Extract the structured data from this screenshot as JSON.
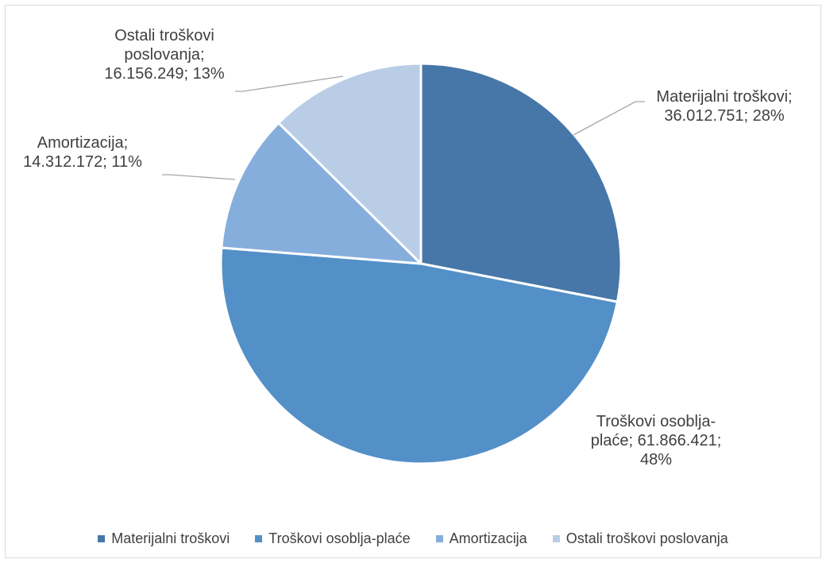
{
  "chart_data": {
    "type": "pie",
    "title": "",
    "slices": [
      {
        "name": "Materijalni troškovi",
        "value": 36012751,
        "percent": 28,
        "color": "#4677A8",
        "label_lines": [
          "Materijalni troškovi;",
          "36.012.751; 28%"
        ]
      },
      {
        "name": "Troškovi osoblja-plaće",
        "value": 61866421,
        "percent": 48,
        "color": "#5390C8",
        "label_lines": [
          "Troškovi osoblja-",
          "plaće; 61.866.421;",
          "48%"
        ]
      },
      {
        "name": "Amortizacija",
        "value": 14312172,
        "percent": 11,
        "color": "#86AEDC",
        "label_lines": [
          "Amortizacija;",
          "14.312.172; 11%"
        ]
      },
      {
        "name": "Ostali troškovi poslovanja",
        "value": 16156249,
        "percent": 13,
        "color": "#B9CDE7",
        "label_lines": [
          "Ostali troškovi",
          "poslovanja;",
          "16.156.249; 13%"
        ]
      }
    ],
    "legend_position": "bottom"
  }
}
